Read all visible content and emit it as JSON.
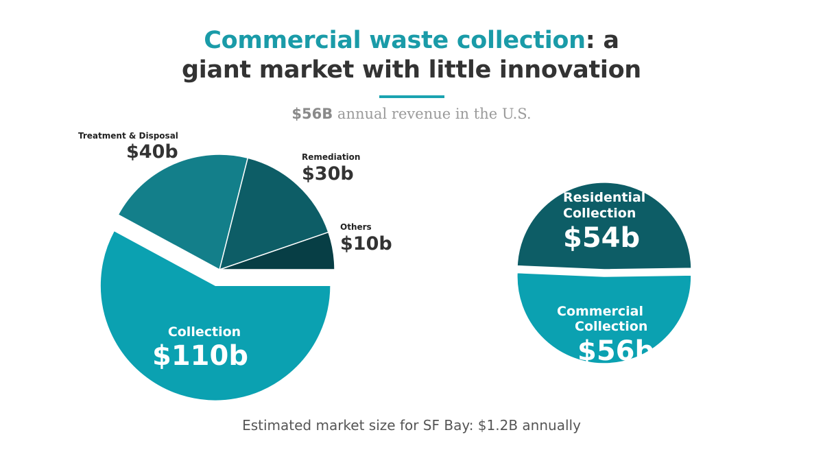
{
  "header": {
    "title_highlight": "Commercial waste collection",
    "title_rest_line1": ": a",
    "title_line2": "giant market with little innovation",
    "subtitle_strong": "$56B",
    "subtitle_rest": " annual revenue in the U.S."
  },
  "footer": {
    "text": "Estimated market size for SF Bay: $1.2B annually"
  },
  "colors": {
    "title_accent": "#1a9ba8",
    "collection": "#0ba1b1",
    "treatment": "#137f8a",
    "remediation": "#0d5d66",
    "others": "#073e45",
    "residential": "#0d5d66",
    "commercial": "#0ba1b1"
  },
  "chart_data": [
    {
      "type": "pie",
      "categories": [
        "Collection",
        "Treatment & Disposal",
        "Remediation",
        "Others"
      ],
      "values": [
        110,
        40,
        30,
        10
      ],
      "unit": "b",
      "value_labels": [
        "$110b",
        "$40b",
        "$30b",
        "$10b"
      ],
      "exploded": "Collection"
    },
    {
      "type": "pie",
      "categories": [
        "Residential Collection",
        "Commercial Collection"
      ],
      "values": [
        54,
        56
      ],
      "unit": "b",
      "value_labels": [
        "$54b",
        "$56b"
      ],
      "exploded": "Commercial Collection"
    }
  ]
}
